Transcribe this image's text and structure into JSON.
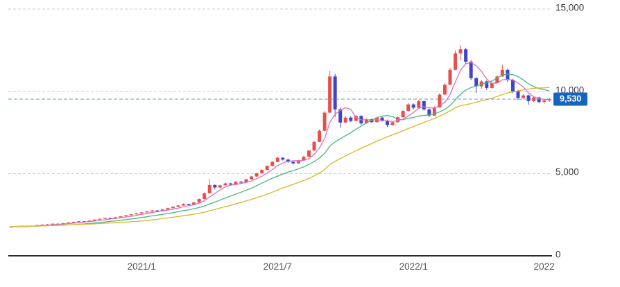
{
  "colors": {
    "candle_up": "#e6504a",
    "candle_down": "#4144c9",
    "grid": "#cccccc",
    "axis": "#2a2a30",
    "price_line": "#5b9ddc",
    "price_badge": "#1565c0",
    "ma_short": "#e26bbf",
    "ma_mid": "#45b97c",
    "ma_long": "#e0b320"
  },
  "chart_data": {
    "type": "candlestick",
    "grid": "horizontal-dashed",
    "legend": "none",
    "ylim": [
      0,
      15000
    ],
    "y_ticks": [
      {
        "value": 15000,
        "label": "15,000"
      },
      {
        "value": 10000,
        "label": "10,000"
      },
      {
        "value": 5000,
        "label": "5,000"
      },
      {
        "value": 0,
        "label": "0"
      }
    ],
    "x_ticks": [
      {
        "index": 25,
        "label": "2021/1"
      },
      {
        "index": 51,
        "label": "2021/7"
      },
      {
        "index": 77,
        "label": "2022/1"
      },
      {
        "index": 102,
        "label": "2022"
      }
    ],
    "current_price": 9530,
    "current_price_label": "9,530",
    "moving_averages": [
      {
        "name": "ma-short",
        "window": 5,
        "color_key": "ma_short"
      },
      {
        "name": "ma-mid",
        "window": 13,
        "color_key": "ma_mid"
      },
      {
        "name": "ma-long",
        "window": 26,
        "color_key": "ma_long"
      }
    ],
    "candles_ohlc": [
      [
        1740,
        1790,
        1715,
        1770
      ],
      [
        1770,
        1815,
        1750,
        1795
      ],
      [
        1795,
        1835,
        1770,
        1815
      ],
      [
        1815,
        1825,
        1758,
        1780
      ],
      [
        1780,
        1845,
        1770,
        1830
      ],
      [
        1830,
        1882,
        1818,
        1862
      ],
      [
        1862,
        1912,
        1845,
        1895
      ],
      [
        1895,
        1932,
        1872,
        1912
      ],
      [
        1912,
        1972,
        1900,
        1950
      ],
      [
        1950,
        1962,
        1898,
        1920
      ],
      [
        1920,
        2002,
        1910,
        1982
      ],
      [
        1982,
        2042,
        1962,
        2022
      ],
      [
        2022,
        2082,
        2002,
        2062
      ],
      [
        2062,
        2122,
        2042,
        2100
      ],
      [
        2100,
        2112,
        2050,
        2072
      ],
      [
        2072,
        2162,
        2060,
        2140
      ],
      [
        2140,
        2222,
        2128,
        2200
      ],
      [
        2200,
        2272,
        2182,
        2250
      ],
      [
        2250,
        2322,
        2232,
        2300
      ],
      [
        2300,
        2312,
        2248,
        2270
      ],
      [
        2270,
        2362,
        2258,
        2340
      ],
      [
        2340,
        2422,
        2330,
        2400
      ],
      [
        2400,
        2482,
        2390,
        2460
      ],
      [
        2460,
        2542,
        2450,
        2520
      ],
      [
        2520,
        2602,
        2508,
        2580
      ],
      [
        2580,
        2662,
        2570,
        2640
      ],
      [
        2640,
        2722,
        2622,
        2700
      ],
      [
        2700,
        2782,
        2688,
        2760
      ],
      [
        2760,
        2772,
        2700,
        2722
      ],
      [
        2722,
        2842,
        2712,
        2820
      ],
      [
        2820,
        2922,
        2800,
        2900
      ],
      [
        2900,
        3002,
        2880,
        2980
      ],
      [
        2980,
        3082,
        2958,
        3060
      ],
      [
        3060,
        3182,
        3040,
        3152
      ],
      [
        3152,
        3172,
        3058,
        3090
      ],
      [
        3090,
        3272,
        3080,
        3250
      ],
      [
        3250,
        3482,
        3230,
        3452
      ],
      [
        3452,
        3852,
        3432,
        3800
      ],
      [
        3800,
        4650,
        3782,
        4300
      ],
      [
        4300,
        4352,
        4048,
        4152
      ],
      [
        4152,
        4322,
        4100,
        4282
      ],
      [
        4282,
        4452,
        4252,
        4400
      ],
      [
        4400,
        4432,
        4278,
        4330
      ],
      [
        4330,
        4542,
        4310,
        4500
      ],
      [
        4500,
        4562,
        4398,
        4452
      ],
      [
        4452,
        4682,
        4432,
        4650
      ],
      [
        4650,
        4862,
        4630,
        4820
      ],
      [
        4820,
        5062,
        4800,
        5020
      ],
      [
        5020,
        5262,
        5000,
        5220
      ],
      [
        5220,
        5502,
        5200,
        5460
      ],
      [
        5460,
        5762,
        5440,
        5710
      ],
      [
        5710,
        6022,
        5688,
        5960
      ],
      [
        5960,
        6000,
        5790,
        5850
      ],
      [
        5850,
        5900,
        5650,
        5712
      ],
      [
        5712,
        5780,
        5540,
        5620
      ],
      [
        5620,
        5832,
        5600,
        5790
      ],
      [
        5790,
        6082,
        5770,
        6020
      ],
      [
        6020,
        6452,
        6000,
        6400
      ],
      [
        6400,
        6982,
        6380,
        6920
      ],
      [
        6920,
        7682,
        6900,
        7600
      ],
      [
        7600,
        8802,
        7580,
        8700
      ],
      [
        8700,
        11250,
        8680,
        10900
      ],
      [
        10900,
        11050,
        8450,
        8900
      ],
      [
        8900,
        9000,
        7800,
        8100
      ],
      [
        8100,
        8502,
        8050,
        8400
      ],
      [
        8400,
        8482,
        8120,
        8200
      ],
      [
        8200,
        8562,
        8180,
        8500
      ],
      [
        8500,
        8542,
        7950,
        8050
      ],
      [
        8050,
        8362,
        8030,
        8300
      ],
      [
        8300,
        8342,
        8060,
        8120
      ],
      [
        8120,
        8462,
        8100,
        8400
      ],
      [
        8400,
        8442,
        8150,
        8220
      ],
      [
        8220,
        8282,
        7820,
        7950
      ],
      [
        7950,
        8182,
        7900,
        8120
      ],
      [
        8120,
        8482,
        8100,
        8420
      ],
      [
        8420,
        8862,
        8400,
        8800
      ],
      [
        8800,
        9282,
        8780,
        9200
      ],
      [
        9200,
        9262,
        8900,
        9000
      ],
      [
        9000,
        9482,
        8980,
        9400
      ],
      [
        9400,
        9442,
        8820,
        8900
      ],
      [
        8900,
        8962,
        8420,
        8520
      ],
      [
        8520,
        9082,
        8500,
        9020
      ],
      [
        9020,
        9882,
        9000,
        9800
      ],
      [
        9800,
        10482,
        9780,
        10400
      ],
      [
        10400,
        11422,
        10380,
        11300
      ],
      [
        11300,
        12482,
        11280,
        12300
      ],
      [
        12300,
        12800,
        11900,
        12550
      ],
      [
        12550,
        12650,
        11650,
        11800
      ],
      [
        11800,
        11902,
        10680,
        10800
      ],
      [
        10800,
        10852,
        9900,
        10300
      ],
      [
        10300,
        10702,
        10150,
        10600
      ],
      [
        10600,
        10662,
        10080,
        10200
      ],
      [
        10200,
        10562,
        10150,
        10500
      ],
      [
        10500,
        10962,
        10480,
        10900
      ],
      [
        10900,
        11600,
        10880,
        11300
      ],
      [
        11300,
        11382,
        10560,
        10700
      ],
      [
        10700,
        10762,
        9880,
        10000
      ],
      [
        10000,
        10082,
        9480,
        9600
      ],
      [
        9600,
        9822,
        9520,
        9750
      ],
      [
        9750,
        9802,
        9180,
        9400
      ],
      [
        9400,
        9682,
        9350,
        9620
      ],
      [
        9620,
        9662,
        9280,
        9350
      ],
      [
        9350,
        9502,
        9250,
        9440
      ],
      [
        9440,
        9612,
        9360,
        9530
      ]
    ]
  }
}
